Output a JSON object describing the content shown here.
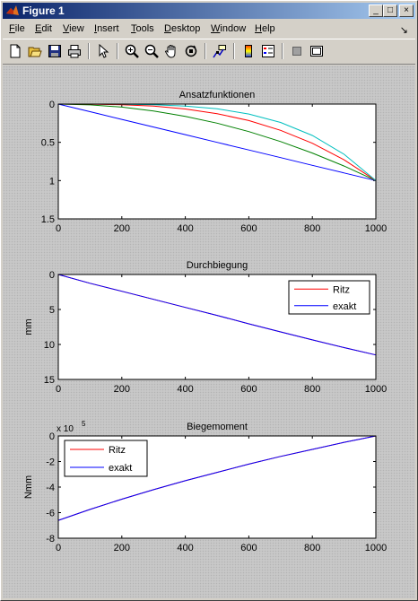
{
  "window": {
    "title": "Figure 1",
    "buttons": {
      "minimize": "_",
      "maximize": "□",
      "close": "×"
    },
    "dock_arrow": "↘"
  },
  "menubar": [
    {
      "u": "F",
      "rest": "ile"
    },
    {
      "u": "E",
      "rest": "dit"
    },
    {
      "u": "V",
      "rest": "iew"
    },
    {
      "u": "I",
      "rest": "nsert"
    },
    {
      "u": "T",
      "rest": "ools"
    },
    {
      "u": "D",
      "rest": "esktop"
    },
    {
      "u": "W",
      "rest": "indow"
    },
    {
      "u": "H",
      "rest": "elp"
    }
  ],
  "toolbar": [
    "new-figure-icon",
    "open-file-icon",
    "save-icon",
    "print-icon",
    "edit-plot-arrow-icon",
    "zoom-in-icon",
    "zoom-out-icon",
    "pan-hand-icon",
    "rotate-3d-icon",
    "data-cursor-icon",
    "colorbar-icon",
    "legend-icon",
    "hide-plot-tools-icon",
    "show-plot-tools-icon"
  ],
  "chart_data": [
    {
      "type": "line",
      "title": "Ansatzfunktionen",
      "xlabel": "",
      "ylabel": "",
      "xlim": [
        0,
        1000
      ],
      "ylim": [
        0,
        1.5
      ],
      "y_reversed": true,
      "xticks": [
        0,
        200,
        400,
        600,
        800,
        1000
      ],
      "yticks": [
        0,
        0.5,
        1,
        1.5
      ],
      "xtick_labels": [
        "0",
        "200",
        "400",
        "600",
        "800",
        "1000"
      ],
      "ytick_labels": [
        "0",
        "0.5",
        "1",
        "1.5"
      ],
      "x": [
        0,
        100,
        200,
        300,
        400,
        500,
        600,
        700,
        800,
        900,
        1000
      ],
      "series": [
        {
          "color": "#0000ff",
          "values": [
            0,
            0.1,
            0.2,
            0.3,
            0.4,
            0.5,
            0.6,
            0.7,
            0.8,
            0.9,
            1.0
          ]
        },
        {
          "color": "#008000",
          "values": [
            0,
            0.01,
            0.04,
            0.09,
            0.16,
            0.25,
            0.36,
            0.49,
            0.64,
            0.81,
            1.0
          ]
        },
        {
          "color": "#ff0000",
          "values": [
            0,
            0.001,
            0.008,
            0.027,
            0.064,
            0.125,
            0.216,
            0.343,
            0.512,
            0.729,
            1.0
          ]
        },
        {
          "color": "#00bfbf",
          "values": [
            0,
            0.0001,
            0.0016,
            0.0081,
            0.0256,
            0.0625,
            0.1296,
            0.2401,
            0.4096,
            0.6561,
            1.0
          ]
        }
      ],
      "grid": false,
      "legend": null
    },
    {
      "type": "line",
      "title": "Durchbiegung",
      "xlabel": "",
      "ylabel": "mm",
      "xlim": [
        0,
        1000
      ],
      "ylim": [
        0,
        15
      ],
      "y_reversed": true,
      "xticks": [
        0,
        200,
        400,
        600,
        800,
        1000
      ],
      "yticks": [
        0,
        5,
        10,
        15
      ],
      "xtick_labels": [
        "0",
        "200",
        "400",
        "600",
        "800",
        "1000"
      ],
      "ytick_labels": [
        "0",
        "5",
        "10",
        "15"
      ],
      "x": [
        0,
        100,
        200,
        300,
        400,
        500,
        600,
        700,
        800,
        900,
        1000
      ],
      "series": [
        {
          "name": "Ritz",
          "color": "#ff0000",
          "values": [
            0,
            1.25,
            2.4,
            3.55,
            4.7,
            5.85,
            7.05,
            8.2,
            9.35,
            10.45,
            11.5
          ]
        },
        {
          "name": "exakt",
          "color": "#0000ff",
          "values": [
            0,
            1.25,
            2.4,
            3.55,
            4.7,
            5.85,
            7.05,
            8.2,
            9.35,
            10.45,
            11.5
          ]
        }
      ],
      "grid": false,
      "legend": "top-right"
    },
    {
      "type": "line",
      "title": "Biegemoment",
      "xlabel": "",
      "ylabel": "Nmm",
      "y_exponent_label": "x 10",
      "y_exponent": "5",
      "xlim": [
        0,
        1000
      ],
      "ylim": [
        -8,
        0
      ],
      "xticks": [
        0,
        200,
        400,
        600,
        800,
        1000
      ],
      "yticks": [
        0,
        -2,
        -4,
        -6,
        -8
      ],
      "xtick_labels": [
        "0",
        "200",
        "400",
        "600",
        "800",
        "1000"
      ],
      "ytick_labels": [
        "0",
        "-2",
        "-4",
        "-6",
        "-8"
      ],
      "x": [
        0,
        100,
        200,
        300,
        400,
        500,
        600,
        700,
        800,
        900,
        1000
      ],
      "series": [
        {
          "name": "Ritz",
          "color": "#ff0000",
          "values": [
            -6.6,
            -5.75,
            -4.95,
            -4.2,
            -3.5,
            -2.85,
            -2.2,
            -1.6,
            -1.05,
            -0.5,
            0
          ]
        },
        {
          "name": "exakt",
          "color": "#0000ff",
          "values": [
            -6.6,
            -5.75,
            -4.95,
            -4.2,
            -3.5,
            -2.85,
            -2.2,
            -1.6,
            -1.05,
            -0.5,
            0
          ]
        }
      ],
      "grid": false,
      "legend": "top-left"
    }
  ]
}
